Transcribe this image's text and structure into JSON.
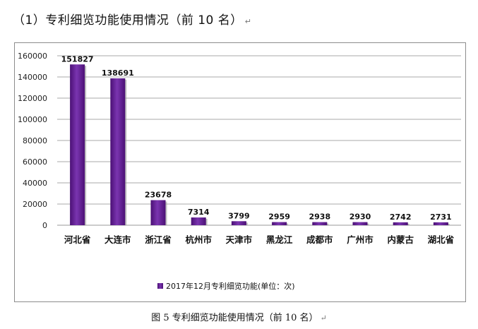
{
  "heading": "（1）专利细览功能使用情况（前 10 名）",
  "caption": "图 5    专利细览功能使用情况（前 10 名）",
  "chart_data": {
    "type": "bar",
    "title": "",
    "xlabel": "",
    "ylabel": "",
    "categories": [
      "河北省",
      "大连市",
      "浙江省",
      "杭州市",
      "天津市",
      "黑龙江",
      "成都市",
      "广州市",
      "内蒙古",
      "湖北省"
    ],
    "series": [
      {
        "name": "2017年12月专利细览功能(单位：次)",
        "values": [
          151827,
          138691,
          23678,
          7314,
          3799,
          2959,
          2938,
          2930,
          2742,
          2731
        ]
      }
    ],
    "ylim": [
      0,
      160000
    ],
    "yticks": [
      0,
      20000,
      40000,
      60000,
      80000,
      100000,
      120000,
      140000,
      160000
    ],
    "grid": true,
    "legend": "bottom",
    "data_labels": true,
    "bar_color": "#6a1fa0"
  }
}
